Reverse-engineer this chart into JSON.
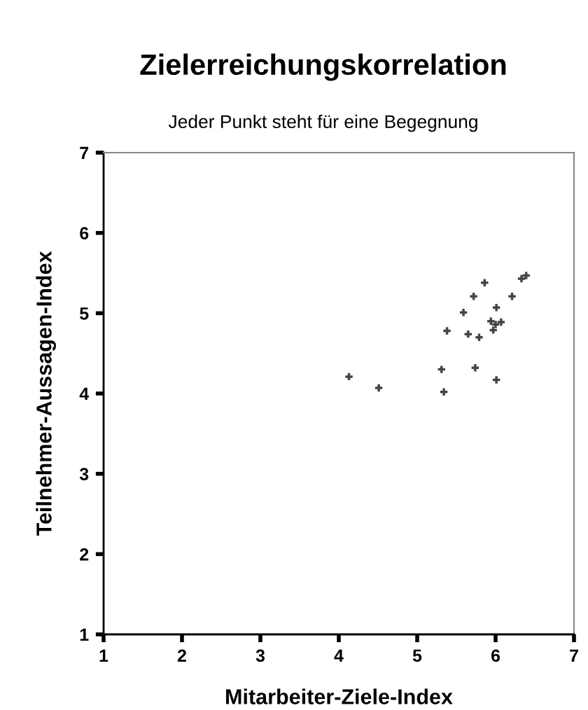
{
  "chart_data": {
    "type": "scatter",
    "title": "Zielerreichungskorrelation",
    "subtitle": "Jeder Punkt steht für eine Begegnung",
    "xlabel": "Mitarbeiter-Ziele-Index",
    "ylabel": "Teilnehmer-Aussagen-Index",
    "x": [
      4.13,
      4.51,
      5.31,
      5.34,
      5.38,
      5.59,
      5.65,
      5.72,
      5.74,
      5.79,
      5.86,
      5.94,
      5.97,
      6.0,
      6.01,
      6.01,
      6.07,
      6.21,
      6.33,
      6.39
    ],
    "series": [
      {
        "color": "#444444",
        "values": [
          4.21,
          4.07,
          4.3,
          4.02,
          4.78,
          5.01,
          4.74,
          5.21,
          4.32,
          4.7,
          5.38,
          4.9,
          4.79,
          4.86,
          5.07,
          4.17,
          4.89,
          5.21,
          5.43,
          5.47
        ]
      }
    ],
    "xlim": [
      1,
      7
    ],
    "ylim": [
      1,
      7
    ],
    "xticks": [
      1,
      2,
      3,
      4,
      5,
      6,
      7
    ],
    "yticks": [
      1,
      2,
      3,
      4,
      5,
      6,
      7
    ],
    "grid": false,
    "marker": "cross"
  }
}
